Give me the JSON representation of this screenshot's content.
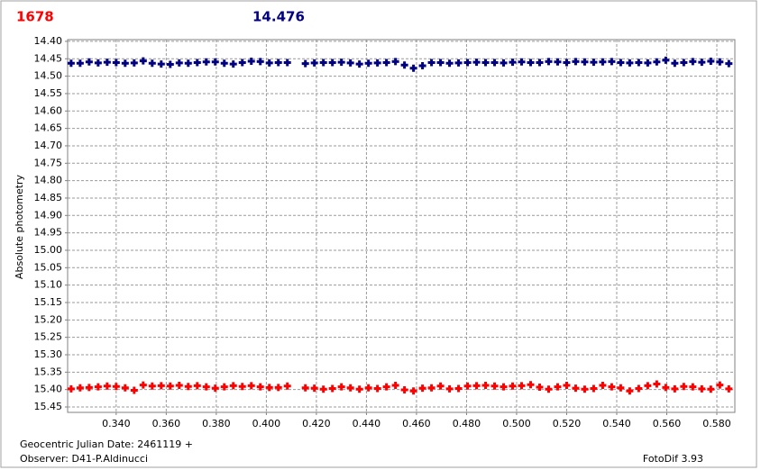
{
  "chart_data": {
    "type": "scatter",
    "title": "1678",
    "subtitle": "14.476",
    "ylabel": "Absolute photometry",
    "xlabel": "Geocentric Julian Date: 2461119 +",
    "observer": "Observer: D41-P.Aldinucci",
    "software": "FotoDif 3.93",
    "y_inverted": true,
    "grid": true,
    "xlim": [
      0.3206,
      0.5872
    ],
    "ylim": [
      14.395,
      15.4655
    ],
    "xticks": [
      {
        "value": 0.34,
        "label": "0.340"
      },
      {
        "value": 0.36,
        "label": "0.360"
      },
      {
        "value": 0.38,
        "label": "0.380"
      },
      {
        "value": 0.4,
        "label": "0.400"
      },
      {
        "value": 0.42,
        "label": "0.420"
      },
      {
        "value": 0.44,
        "label": "0.440"
      },
      {
        "value": 0.46,
        "label": "0.460"
      },
      {
        "value": 0.48,
        "label": "0.480"
      },
      {
        "value": 0.5,
        "label": "0.500"
      },
      {
        "value": 0.52,
        "label": "0.520"
      },
      {
        "value": 0.54,
        "label": "0.540"
      },
      {
        "value": 0.56,
        "label": "0.560"
      },
      {
        "value": 0.58,
        "label": "0.580"
      }
    ],
    "yticks": [
      {
        "value": 14.4,
        "label": "14.40"
      },
      {
        "value": 14.45,
        "label": "14.45"
      },
      {
        "value": 14.5,
        "label": "14.50"
      },
      {
        "value": 14.55,
        "label": "14.55"
      },
      {
        "value": 14.6,
        "label": "14.60"
      },
      {
        "value": 14.65,
        "label": "14.65"
      },
      {
        "value": 14.7,
        "label": "14.70"
      },
      {
        "value": 14.75,
        "label": "14.75"
      },
      {
        "value": 14.8,
        "label": "14.80"
      },
      {
        "value": 14.85,
        "label": "14.85"
      },
      {
        "value": 14.9,
        "label": "14.90"
      },
      {
        "value": 14.95,
        "label": "14.95"
      },
      {
        "value": 15.0,
        "label": "15.00"
      },
      {
        "value": 15.05,
        "label": "15.05"
      },
      {
        "value": 15.1,
        "label": "15.10"
      },
      {
        "value": 15.15,
        "label": "15.15"
      },
      {
        "value": 15.2,
        "label": "15.20"
      },
      {
        "value": 15.25,
        "label": "15.25"
      },
      {
        "value": 15.3,
        "label": "15.30"
      },
      {
        "value": 15.35,
        "label": "15.35"
      },
      {
        "value": 15.4,
        "label": "15.40"
      },
      {
        "value": 15.45,
        "label": "15.45"
      }
    ],
    "x": [
      0.322,
      0.3256,
      0.3292,
      0.3328,
      0.3364,
      0.34,
      0.3436,
      0.3472,
      0.3508,
      0.3544,
      0.358,
      0.3616,
      0.3652,
      0.3688,
      0.3724,
      0.376,
      0.3796,
      0.3832,
      0.3868,
      0.3904,
      0.394,
      0.3976,
      0.4012,
      0.4048,
      0.4084,
      0.4156,
      0.4192,
      0.4228,
      0.4264,
      0.43,
      0.4336,
      0.4372,
      0.4408,
      0.4444,
      0.448,
      0.4516,
      0.4552,
      0.4588,
      0.4624,
      0.466,
      0.4696,
      0.4732,
      0.4768,
      0.4804,
      0.484,
      0.4876,
      0.4912,
      0.4948,
      0.4984,
      0.502,
      0.5056,
      0.5092,
      0.5128,
      0.5164,
      0.52,
      0.5236,
      0.5272,
      0.5308,
      0.5344,
      0.538,
      0.5416,
      0.5452,
      0.5488,
      0.5524,
      0.556,
      0.5596,
      0.5632,
      0.5668,
      0.5704,
      0.574,
      0.5776,
      0.5812,
      0.5848
    ],
    "series": [
      {
        "color": "#000080",
        "values": [
          14.463,
          14.463,
          14.459,
          14.462,
          14.46,
          14.461,
          14.463,
          14.462,
          14.456,
          14.463,
          14.465,
          14.466,
          14.462,
          14.463,
          14.461,
          14.459,
          14.459,
          14.463,
          14.465,
          14.461,
          14.457,
          14.458,
          14.462,
          14.461,
          14.461,
          14.464,
          14.462,
          14.461,
          14.461,
          14.46,
          14.462,
          14.465,
          14.463,
          14.462,
          14.461,
          14.458,
          14.468,
          14.477,
          14.47,
          14.461,
          14.461,
          14.463,
          14.462,
          14.461,
          14.46,
          14.461,
          14.461,
          14.462,
          14.46,
          14.459,
          14.461,
          14.461,
          14.458,
          14.459,
          14.461,
          14.458,
          14.459,
          14.46,
          14.459,
          14.458,
          14.461,
          14.462,
          14.461,
          14.462,
          14.459,
          14.454,
          14.463,
          14.461,
          14.458,
          14.46,
          14.457,
          14.459,
          14.464
        ]
      },
      {
        "color": "#ff0000",
        "values": [
          15.398,
          15.395,
          15.394,
          15.392,
          15.39,
          15.391,
          15.395,
          15.402,
          15.387,
          15.39,
          15.389,
          15.39,
          15.388,
          15.391,
          15.389,
          15.392,
          15.396,
          15.392,
          15.389,
          15.391,
          15.389,
          15.392,
          15.394,
          15.394,
          15.39,
          15.395,
          15.396,
          15.399,
          15.397,
          15.392,
          15.395,
          15.399,
          15.395,
          15.397,
          15.392,
          15.388,
          15.401,
          15.404,
          15.396,
          15.395,
          15.39,
          15.398,
          15.397,
          15.39,
          15.389,
          15.388,
          15.39,
          15.392,
          15.39,
          15.389,
          15.386,
          15.393,
          15.399,
          15.392,
          15.388,
          15.396,
          15.399,
          15.397,
          15.388,
          15.392,
          15.395,
          15.404,
          15.397,
          15.389,
          15.384,
          15.394,
          15.398,
          15.391,
          15.392,
          15.398,
          15.399,
          15.387,
          15.398
        ]
      }
    ]
  }
}
